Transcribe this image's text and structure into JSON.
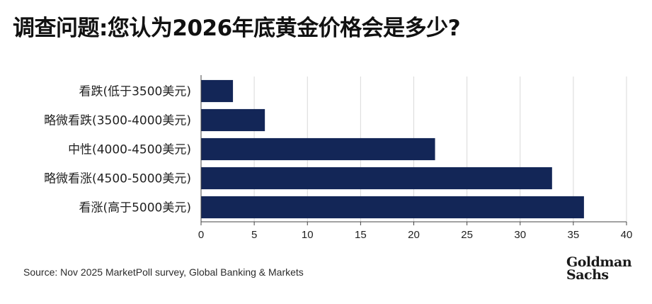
{
  "title": "调查问题:您认为2026年底黄金价格会是多少?",
  "colors": {
    "bar": "#132657",
    "grid": "#d9d9d9",
    "axis": "#444444"
  },
  "chart_data": {
    "type": "bar",
    "orientation": "horizontal",
    "title": "调查问题:您认为2026年底黄金价格会是多少?",
    "categories": [
      "看跌(低于3500美元)",
      "略微看跌(3500-4000美元)",
      "中性(4000-4500美元)",
      "略微看涨(4500-5000美元)",
      "看涨(高于5000美元)"
    ],
    "values": [
      3,
      6,
      22,
      33,
      36
    ],
    "xlim": [
      0,
      40
    ],
    "xticks": [
      0,
      5,
      10,
      15,
      20,
      25,
      30,
      35,
      40
    ],
    "xlabel": "",
    "ylabel": "",
    "grid": "vertical"
  },
  "source": "Source: Nov 2025 MarketPoll survey, Global Banking & Markets",
  "logo": {
    "line1": "Goldman",
    "line2": "Sachs"
  }
}
